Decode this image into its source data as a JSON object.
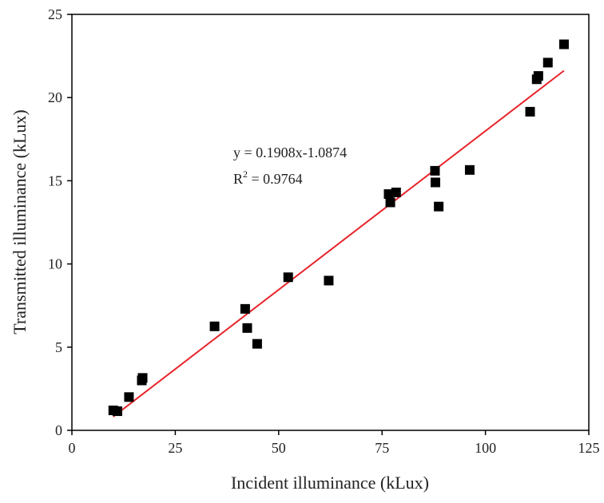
{
  "chart_data": {
    "type": "scatter",
    "xlabel": "Incident illuminance (kLux)",
    "ylabel": "Transmitted illuminance (kLux)",
    "xlim": [
      0,
      125
    ],
    "ylim": [
      0,
      25
    ],
    "xticks": [
      "0",
      "25",
      "50",
      "75",
      "100",
      "125"
    ],
    "yticks": [
      "0",
      "5",
      "10",
      "15",
      "20",
      "25"
    ],
    "xtick_values": [
      0,
      25,
      50,
      75,
      100,
      125
    ],
    "ytick_values": [
      0,
      5,
      10,
      15,
      20,
      25
    ],
    "grid": false,
    "series": [
      {
        "marker": "square",
        "color": "#000000",
        "points": [
          [
            10.0,
            1.2
          ],
          [
            11.0,
            1.15
          ],
          [
            13.8,
            2.0
          ],
          [
            16.9,
            3.0
          ],
          [
            17.1,
            3.15
          ],
          [
            34.5,
            6.25
          ],
          [
            41.9,
            7.3
          ],
          [
            42.4,
            6.15
          ],
          [
            44.8,
            5.2
          ],
          [
            52.3,
            9.2
          ],
          [
            62.1,
            9.0
          ],
          [
            76.6,
            14.2
          ],
          [
            77.0,
            13.7
          ],
          [
            78.4,
            14.3
          ],
          [
            87.8,
            15.6
          ],
          [
            87.9,
            14.9
          ],
          [
            88.7,
            13.45
          ],
          [
            96.2,
            15.65
          ],
          [
            110.8,
            19.15
          ],
          [
            112.4,
            21.1
          ],
          [
            112.8,
            21.3
          ],
          [
            115.1,
            22.1
          ],
          [
            119.0,
            23.2
          ]
        ]
      }
    ],
    "fit": {
      "color": "#e8232a",
      "slope": 0.1908,
      "intercept": -1.0874,
      "x_range": [
        10,
        119
      ]
    },
    "annotation": {
      "equation": "y = 0.1908x-1.0874",
      "r2_prefix": "R",
      "r2_sup": "2",
      "r2_value": " = 0.9764"
    }
  }
}
